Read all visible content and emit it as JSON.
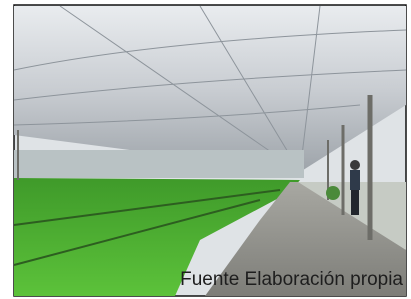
{
  "caption": "Fuente Elaboración propia"
}
